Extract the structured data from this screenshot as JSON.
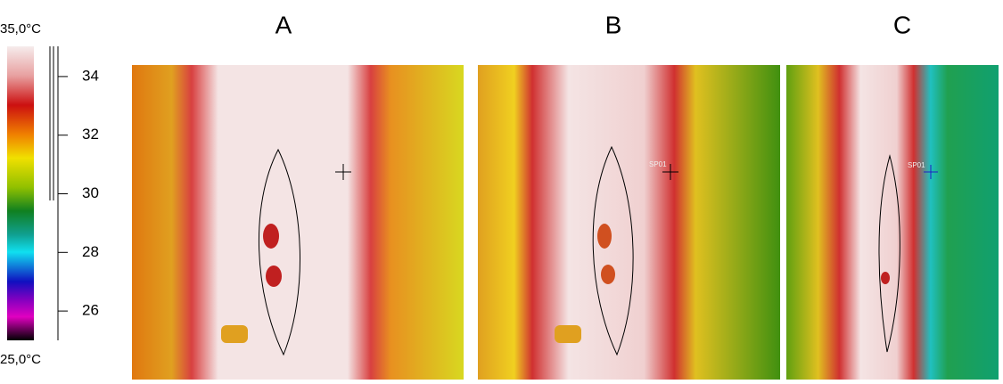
{
  "scale": {
    "lim": [
      25,
      35
    ],
    "lim_labels": [
      "25,0°C",
      "35,0°C"
    ],
    "ticks": [
      26,
      28,
      30,
      32,
      34
    ]
  },
  "panels": [
    {
      "label": "A"
    },
    {
      "label": "B",
      "spot": "SP01"
    },
    {
      "label": "C",
      "spot": "SP01"
    }
  ]
}
